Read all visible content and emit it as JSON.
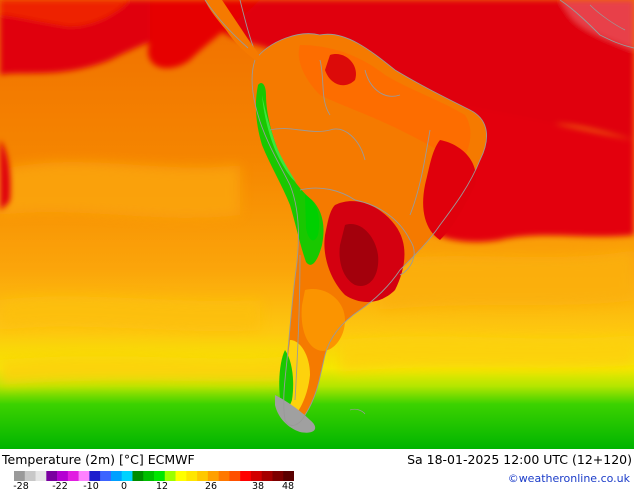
{
  "header": {
    "title": "Temperature (2m) [°C] ECMWF",
    "datetime": "Sa 18-01-2025 12:00 UTC (12+120)",
    "credit": "©weatheronline.co.uk"
  },
  "legend": {
    "ticks": [
      "-28",
      "-22",
      "-10",
      "0",
      "12",
      "26",
      "38",
      "48"
    ],
    "colors": [
      "#9a9a9a",
      "#c8c8c8",
      "#e6e6e6",
      "#7a00a0",
      "#b400d2",
      "#e11ee1",
      "#ff82ff",
      "#1e1ecd",
      "#3c64ff",
      "#00a0ff",
      "#00d2ff",
      "#008c00",
      "#00be00",
      "#00e600",
      "#9bff00",
      "#ffff00",
      "#ffe600",
      "#ffc800",
      "#ffa000",
      "#ff7800",
      "#ff5000",
      "#ff0000",
      "#d20000",
      "#a50000",
      "#7d0000",
      "#5a0000"
    ]
  },
  "map": {
    "palette": {
      "ocean_orange": "#f57c00",
      "ocean_light": "#fba90a",
      "ocean_yellow": "#fdd20c",
      "hot_red": "#e5000f",
      "dark_red": "#a3000c",
      "green": "#19c800",
      "bright_green": "#3ce63c",
      "grey_cold": "#a0a0a0",
      "border": "#9a9a9a"
    }
  }
}
